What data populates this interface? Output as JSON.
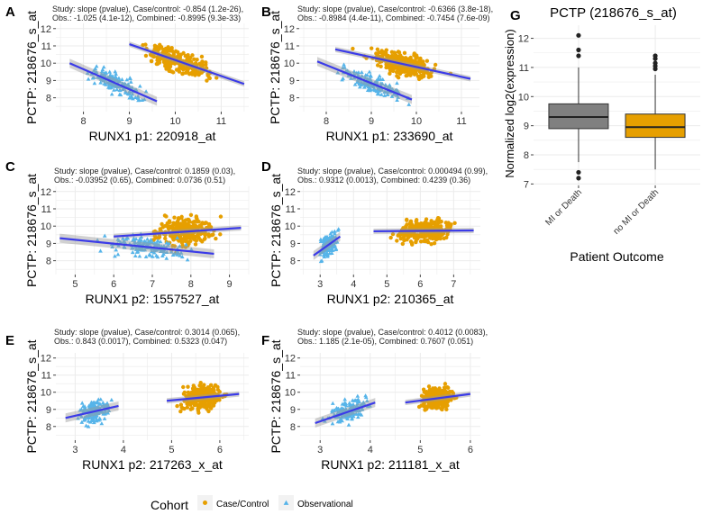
{
  "colors": {
    "case": "#E69F00",
    "obs": "#56B4E9",
    "fit": "#3B3BE8",
    "box_mi": "#808080",
    "box_nomi": "#E69F00",
    "grid": "#EBEBEB"
  },
  "panel_labels": [
    "A",
    "B",
    "C",
    "D",
    "E",
    "F",
    "G"
  ],
  "legend": {
    "title": "Cohort",
    "items": [
      "Case/Control",
      "Observational"
    ]
  },
  "chart_data": [
    {
      "id": "A",
      "type": "scatter",
      "xlabel": "RUNX1 p1: 220918_at",
      "ylabel": "PCTP: 218676_s_at",
      "stat_line1": "Study: slope (pvalue), Case/control: -0.854 (1.2e-26),",
      "stat_line2": "Obs.: -1.025 (4.1e-12), Combined: -0.8995 (9.3e-33)",
      "xlim": [
        7.4,
        11.6
      ],
      "ylim": [
        7.2,
        12.3
      ],
      "xticks": [
        8,
        9,
        10,
        11
      ],
      "yticks": [
        8,
        9,
        10,
        11,
        12
      ],
      "case": {
        "xr": [
          8.8,
          11.3
        ],
        "yr": [
          8.4,
          12.0
        ],
        "n": 260,
        "fit": [
          [
            9.0,
            11.1
          ],
          [
            11.5,
            8.8
          ]
        ]
      },
      "obs": {
        "xr": [
          7.6,
          9.9
        ],
        "yr": [
          7.6,
          11.0
        ],
        "n": 150,
        "fit": [
          [
            7.7,
            10.0
          ],
          [
            9.6,
            7.8
          ]
        ]
      }
    },
    {
      "id": "B",
      "type": "scatter",
      "xlabel": "RUNX1 p1: 233690_at",
      "ylabel": "PCTP: 218676_s_at",
      "stat_line1": "Study: slope (pvalue), Case/control: -0.6366 (3.8e-18),",
      "stat_line2": "Obs.: -0.8984 (4.4e-11), Combined: -0.7454 (7.6e-09)",
      "xlim": [
        7.4,
        11.4
      ],
      "ylim": [
        7.2,
        12.3
      ],
      "xticks": [
        8,
        9,
        10,
        11
      ],
      "yticks": [
        8,
        9,
        10,
        11,
        12
      ],
      "case": {
        "xr": [
          8.3,
          11.2
        ],
        "yr": [
          8.5,
          12.0
        ],
        "n": 260,
        "fit": [
          [
            8.2,
            10.8
          ],
          [
            11.2,
            9.1
          ]
        ]
      },
      "obs": {
        "xr": [
          7.8,
          10.3
        ],
        "yr": [
          7.6,
          11.0
        ],
        "n": 150,
        "fit": [
          [
            7.8,
            10.1
          ],
          [
            9.9,
            7.9
          ]
        ]
      }
    },
    {
      "id": "C",
      "type": "scatter",
      "xlabel": "RUNX1 p2: 1557527_at",
      "ylabel": "PCTP: 218676_s_at",
      "stat_line1": "Study: slope (pvalue), Case/control: 0.1859 (0.03),",
      "stat_line2": "Obs.: -0.03952 (0.65), Combined: 0.0736 (0.51)",
      "xlim": [
        4.5,
        9.5
      ],
      "ylim": [
        7.2,
        12.3
      ],
      "xticks": [
        5,
        6,
        7,
        8,
        9
      ],
      "yticks": [
        8,
        9,
        10,
        11,
        12
      ],
      "case": {
        "xr": [
          6.5,
          9.2
        ],
        "yr": [
          7.5,
          12.0
        ],
        "n": 260,
        "fit": [
          [
            6.0,
            9.4
          ],
          [
            9.3,
            9.9
          ]
        ]
      },
      "obs": {
        "xr": [
          4.8,
          8.9
        ],
        "yr": [
          7.4,
          11.2
        ],
        "n": 150,
        "fit": [
          [
            4.6,
            9.3
          ],
          [
            8.6,
            8.4
          ]
        ]
      }
    },
    {
      "id": "D",
      "type": "scatter",
      "xlabel": "RUNX1 p2: 210365_at",
      "ylabel": "PCTP: 218676_s_at",
      "stat_line1": "Study: slope (pvalue), Case/control: 0.000494 (0.99),",
      "stat_line2": "Obs.: 0.9312 (0.0013), Combined: 0.4239 (0.36)",
      "xlim": [
        2.4,
        7.8
      ],
      "ylim": [
        7.2,
        12.3
      ],
      "xticks": [
        3,
        4,
        5,
        6,
        7
      ],
      "yticks": [
        8,
        9,
        10,
        11,
        12
      ],
      "case": {
        "xr": [
          4.6,
          7.6
        ],
        "yr": [
          8.5,
          12.0
        ],
        "n": 260,
        "fit": [
          [
            4.6,
            9.7
          ],
          [
            7.6,
            9.75
          ]
        ]
      },
      "obs": {
        "xr": [
          2.8,
          3.7
        ],
        "yr": [
          7.5,
          11.0
        ],
        "n": 150,
        "fit": [
          [
            2.8,
            8.3
          ],
          [
            3.6,
            9.4
          ]
        ]
      }
    },
    {
      "id": "E",
      "type": "scatter",
      "xlabel": "RUNX1 p2: 217263_x_at",
      "ylabel": "PCTP: 218676_s_at",
      "stat_line1": "Study: slope (pvalue), Case/control: 0.3014 (0.065),",
      "stat_line2": "Obs.: 0.843 (0.0017), Combined: 0.5323 (0.047)",
      "xlim": [
        2.6,
        6.6
      ],
      "ylim": [
        7.2,
        12.3
      ],
      "xticks": [
        3,
        4,
        5,
        6
      ],
      "yticks": [
        8,
        9,
        10,
        11,
        12
      ],
      "case": {
        "xr": [
          4.9,
          6.4
        ],
        "yr": [
          8.5,
          12.0
        ],
        "n": 260,
        "fit": [
          [
            4.9,
            9.5
          ],
          [
            6.4,
            9.9
          ]
        ]
      },
      "obs": {
        "xr": [
          2.8,
          4.0
        ],
        "yr": [
          7.5,
          11.5
        ],
        "n": 150,
        "fit": [
          [
            2.8,
            8.5
          ],
          [
            3.9,
            9.2
          ]
        ]
      }
    },
    {
      "id": "F",
      "type": "scatter",
      "xlabel": "RUNX1 p2: 211181_x_at",
      "ylabel": "PCTP: 218676_s_at",
      "stat_line1": "Study: slope (pvalue), Case/control: 0.4012 (0.0083),",
      "stat_line2": "Obs.: 1.185 (2.1e-05), Combined: 0.7607 (0.051)",
      "xlim": [
        2.6,
        6.2
      ],
      "ylim": [
        7.2,
        12.3
      ],
      "xticks": [
        3,
        4,
        5,
        6
      ],
      "yticks": [
        8,
        9,
        10,
        11,
        12
      ],
      "case": {
        "xr": [
          4.7,
          6.0
        ],
        "yr": [
          8.5,
          12.0
        ],
        "n": 260,
        "fit": [
          [
            4.7,
            9.4
          ],
          [
            6.0,
            9.9
          ]
        ]
      },
      "obs": {
        "xr": [
          2.9,
          4.2
        ],
        "yr": [
          7.5,
          11.2
        ],
        "n": 150,
        "fit": [
          [
            2.9,
            8.2
          ],
          [
            4.1,
            9.4
          ]
        ]
      }
    },
    {
      "id": "G",
      "type": "box",
      "title": "PCTP (218676_s_at)",
      "xlabel": "Patient Outcome",
      "ylabel": "Normalized log2(expression)",
      "categories": [
        "MI or Death",
        "no MI or Death"
      ],
      "ylim": [
        6.95,
        12.45
      ],
      "yticks": [
        7,
        8,
        9,
        10,
        11,
        12
      ],
      "boxes": [
        {
          "q1": 8.9,
          "median": 9.3,
          "q3": 9.75,
          "wlo": 7.75,
          "whi": 11.0,
          "outliers": [
            11.4,
            11.6,
            12.1,
            7.4,
            7.2
          ]
        },
        {
          "q1": 8.6,
          "median": 8.95,
          "q3": 9.4,
          "wlo": 7.5,
          "whi": 10.75,
          "outliers": [
            10.95,
            11.05,
            11.15,
            11.3,
            11.4
          ]
        }
      ]
    }
  ]
}
